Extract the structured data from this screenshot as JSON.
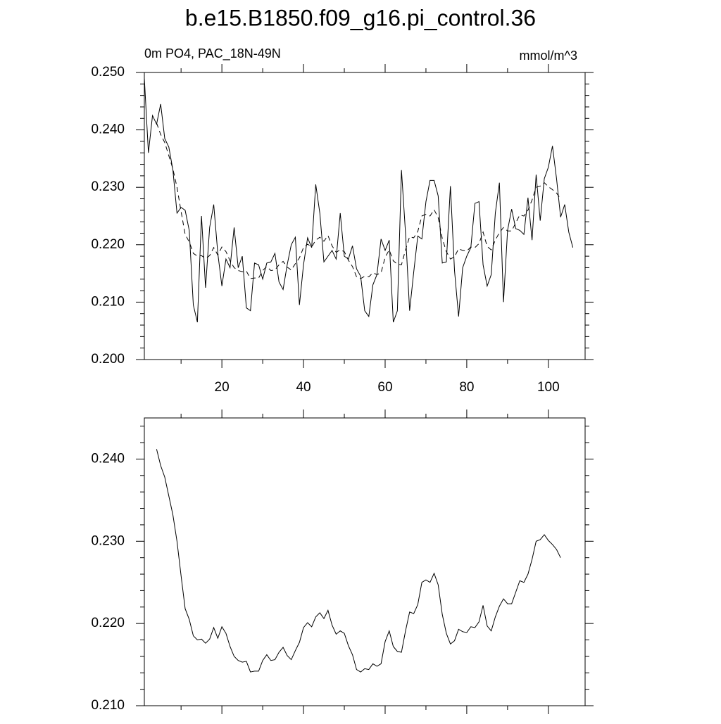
{
  "chart_data": [
    {
      "type": "line",
      "title": "b.e15.B1850.f09_g16.pi_control.36",
      "subtitle_left": "0m PO4, PAC_18N-49N",
      "subtitle_right": "mmol/m^3",
      "xlim": [
        1,
        109
      ],
      "ylim": [
        0.2,
        0.25
      ],
      "xticks": [
        20,
        40,
        60,
        80,
        100
      ],
      "xminor": [
        10,
        30,
        50,
        70,
        90
      ],
      "yticks": [
        {
          "value": 0.2,
          "label": "0.200"
        },
        {
          "value": 0.21,
          "label": "0.210"
        },
        {
          "value": 0.22,
          "label": "0.220"
        },
        {
          "value": 0.23,
          "label": "0.230"
        },
        {
          "value": 0.24,
          "label": "0.240"
        },
        {
          "value": 0.25,
          "label": "0.250"
        }
      ],
      "yminor": [
        0.202,
        0.204,
        0.206,
        0.208,
        0.212,
        0.214,
        0.216,
        0.218,
        0.222,
        0.224,
        0.226,
        0.228,
        0.232,
        0.234,
        0.236,
        0.238,
        0.242,
        0.244,
        0.246,
        0.248
      ],
      "series": [
        {
          "color": "#000000",
          "dash": "solid",
          "x": [
            1,
            2,
            3,
            4,
            5,
            6,
            7,
            8,
            9,
            10,
            11,
            12,
            13,
            14,
            15,
            16,
            17,
            18,
            19,
            20,
            21,
            22,
            23,
            24,
            25,
            26,
            27,
            28,
            29,
            30,
            31,
            32,
            33,
            34,
            35,
            36,
            37,
            38,
            39,
            40,
            41,
            42,
            43,
            44,
            45,
            46,
            47,
            48,
            49,
            50,
            51,
            52,
            53,
            54,
            55,
            56,
            57,
            58,
            59,
            60,
            61,
            62,
            63,
            64,
            65,
            66,
            67,
            68,
            69,
            70,
            71,
            72,
            73,
            74,
            75,
            76,
            77,
            78,
            79,
            80,
            81,
            82,
            83,
            84,
            85,
            86,
            87,
            88,
            89,
            90,
            91,
            92,
            93,
            94,
            95,
            96,
            97,
            98,
            99,
            100,
            101,
            102,
            103,
            104,
            105,
            106
          ],
          "values": [
            0.249,
            0.236,
            0.2425,
            0.241,
            0.2445,
            0.2385,
            0.237,
            0.233,
            0.2255,
            0.2265,
            0.226,
            0.2225,
            0.2095,
            0.2065,
            0.225,
            0.2125,
            0.223,
            0.227,
            0.2185,
            0.2128,
            0.2175,
            0.216,
            0.223,
            0.216,
            0.218,
            0.209,
            0.2085,
            0.2168,
            0.2165,
            0.214,
            0.2168,
            0.217,
            0.2185,
            0.2135,
            0.2122,
            0.2165,
            0.22,
            0.2213,
            0.2095,
            0.2165,
            0.2212,
            0.2195,
            0.2305,
            0.2255,
            0.217,
            0.218,
            0.219,
            0.2175,
            0.2255,
            0.218,
            0.2175,
            0.2198,
            0.2158,
            0.2145,
            0.2085,
            0.2075,
            0.213,
            0.2148,
            0.221,
            0.219,
            0.2208,
            0.2065,
            0.2085,
            0.233,
            0.222,
            0.2085,
            0.2152,
            0.2215,
            0.221,
            0.2275,
            0.2312,
            0.2312,
            0.2285,
            0.2168,
            0.217,
            0.2302,
            0.2155,
            0.2075,
            0.216,
            0.218,
            0.2195,
            0.2272,
            0.2275,
            0.2165,
            0.2128,
            0.2148,
            0.2255,
            0.2308,
            0.21,
            0.2225,
            0.2262,
            0.2228,
            0.2225,
            0.2218,
            0.2282,
            0.2208,
            0.2322,
            0.2242,
            0.2315,
            0.2335,
            0.2372,
            0.2315,
            0.2248,
            0.227,
            0.2222,
            0.2195
          ]
        },
        {
          "color": "#000000",
          "dash": "dashed",
          "x": [
            4,
            5,
            6,
            7,
            8,
            9,
            10,
            11,
            12,
            13,
            14,
            15,
            16,
            17,
            18,
            19,
            20,
            21,
            22,
            23,
            24,
            25,
            26,
            27,
            28,
            29,
            30,
            31,
            32,
            33,
            34,
            35,
            36,
            37,
            38,
            39,
            40,
            41,
            42,
            43,
            44,
            45,
            46,
            47,
            48,
            49,
            50,
            51,
            52,
            53,
            54,
            55,
            56,
            57,
            58,
            59,
            60,
            61,
            62,
            63,
            64,
            65,
            66,
            67,
            68,
            69,
            70,
            71,
            72,
            73,
            74,
            75,
            76,
            77,
            78,
            79,
            80,
            81,
            82,
            83,
            84,
            85,
            86,
            87,
            88,
            89,
            90,
            91,
            92,
            93,
            94,
            95,
            96,
            97,
            98,
            99,
            100,
            101,
            102,
            103
          ],
          "values": [
            0.2412,
            0.2392,
            0.2378,
            0.2355,
            0.2332,
            0.23,
            0.2258,
            0.2218,
            0.2205,
            0.2185,
            0.218,
            0.2181,
            0.2176,
            0.2181,
            0.2195,
            0.2182,
            0.2196,
            0.2188,
            0.2172,
            0.216,
            0.2155,
            0.2153,
            0.2154,
            0.2141,
            0.2142,
            0.2142,
            0.2155,
            0.2162,
            0.2155,
            0.2156,
            0.2165,
            0.2171,
            0.2161,
            0.2156,
            0.2167,
            0.2177,
            0.2195,
            0.2201,
            0.2196,
            0.2208,
            0.2213,
            0.2206,
            0.2216,
            0.2198,
            0.2187,
            0.2191,
            0.2188,
            0.2173,
            0.2162,
            0.2144,
            0.2141,
            0.2145,
            0.2144,
            0.2151,
            0.2148,
            0.2151,
            0.2178,
            0.2191,
            0.2172,
            0.2166,
            0.2165,
            0.2191,
            0.2214,
            0.2212,
            0.2223,
            0.225,
            0.2253,
            0.225,
            0.2261,
            0.2247,
            0.2211,
            0.2188,
            0.2175,
            0.2179,
            0.2193,
            0.219,
            0.2189,
            0.2196,
            0.2195,
            0.2202,
            0.2222,
            0.2197,
            0.2191,
            0.2208,
            0.2221,
            0.223,
            0.2224,
            0.2224,
            0.2238,
            0.2252,
            0.225,
            0.226,
            0.2278,
            0.23,
            0.2302,
            0.2308,
            0.2301,
            0.2296,
            0.229,
            0.228
          ]
        }
      ]
    },
    {
      "type": "line",
      "xlim": [
        1,
        109
      ],
      "ylim": [
        0.21,
        0.245
      ],
      "xticks": [
        20,
        40,
        60,
        80,
        100
      ],
      "xminor": [
        10,
        30,
        50,
        70,
        90
      ],
      "yticks": [
        {
          "value": 0.21,
          "label": "0.210"
        },
        {
          "value": 0.22,
          "label": "0.220"
        },
        {
          "value": 0.23,
          "label": "0.230"
        },
        {
          "value": 0.24,
          "label": "0.240"
        }
      ],
      "yminor": [
        0.212,
        0.214,
        0.216,
        0.218,
        0.222,
        0.224,
        0.226,
        0.228,
        0.232,
        0.234,
        0.236,
        0.238,
        0.242,
        0.244
      ],
      "series": [
        {
          "color": "#000000",
          "dash": "solid",
          "x": [
            4,
            5,
            6,
            7,
            8,
            9,
            10,
            11,
            12,
            13,
            14,
            15,
            16,
            17,
            18,
            19,
            20,
            21,
            22,
            23,
            24,
            25,
            26,
            27,
            28,
            29,
            30,
            31,
            32,
            33,
            34,
            35,
            36,
            37,
            38,
            39,
            40,
            41,
            42,
            43,
            44,
            45,
            46,
            47,
            48,
            49,
            50,
            51,
            52,
            53,
            54,
            55,
            56,
            57,
            58,
            59,
            60,
            61,
            62,
            63,
            64,
            65,
            66,
            67,
            68,
            69,
            70,
            71,
            72,
            73,
            74,
            75,
            76,
            77,
            78,
            79,
            80,
            81,
            82,
            83,
            84,
            85,
            86,
            87,
            88,
            89,
            90,
            91,
            92,
            93,
            94,
            95,
            96,
            97,
            98,
            99,
            100,
            101,
            102,
            103
          ],
          "values": [
            0.2412,
            0.2392,
            0.2378,
            0.2355,
            0.2332,
            0.23,
            0.2258,
            0.2218,
            0.2205,
            0.2185,
            0.218,
            0.2181,
            0.2176,
            0.2181,
            0.2195,
            0.2182,
            0.2196,
            0.2188,
            0.2172,
            0.216,
            0.2155,
            0.2153,
            0.2154,
            0.2141,
            0.2142,
            0.2142,
            0.2155,
            0.2162,
            0.2155,
            0.2156,
            0.2165,
            0.2171,
            0.2161,
            0.2156,
            0.2167,
            0.2177,
            0.2195,
            0.2201,
            0.2196,
            0.2208,
            0.2213,
            0.2206,
            0.2216,
            0.2198,
            0.2187,
            0.2191,
            0.2188,
            0.2173,
            0.2162,
            0.2144,
            0.2141,
            0.2145,
            0.2144,
            0.2151,
            0.2148,
            0.2151,
            0.2178,
            0.2191,
            0.2172,
            0.2166,
            0.2165,
            0.2191,
            0.2214,
            0.2212,
            0.2223,
            0.225,
            0.2253,
            0.225,
            0.2261,
            0.2247,
            0.2211,
            0.2188,
            0.2175,
            0.2179,
            0.2193,
            0.219,
            0.2189,
            0.2196,
            0.2195,
            0.2202,
            0.2222,
            0.2197,
            0.2191,
            0.2208,
            0.2221,
            0.223,
            0.2224,
            0.2224,
            0.2238,
            0.2252,
            0.225,
            0.226,
            0.2278,
            0.23,
            0.2302,
            0.2308,
            0.2301,
            0.2296,
            0.229,
            0.228
          ]
        }
      ]
    }
  ]
}
